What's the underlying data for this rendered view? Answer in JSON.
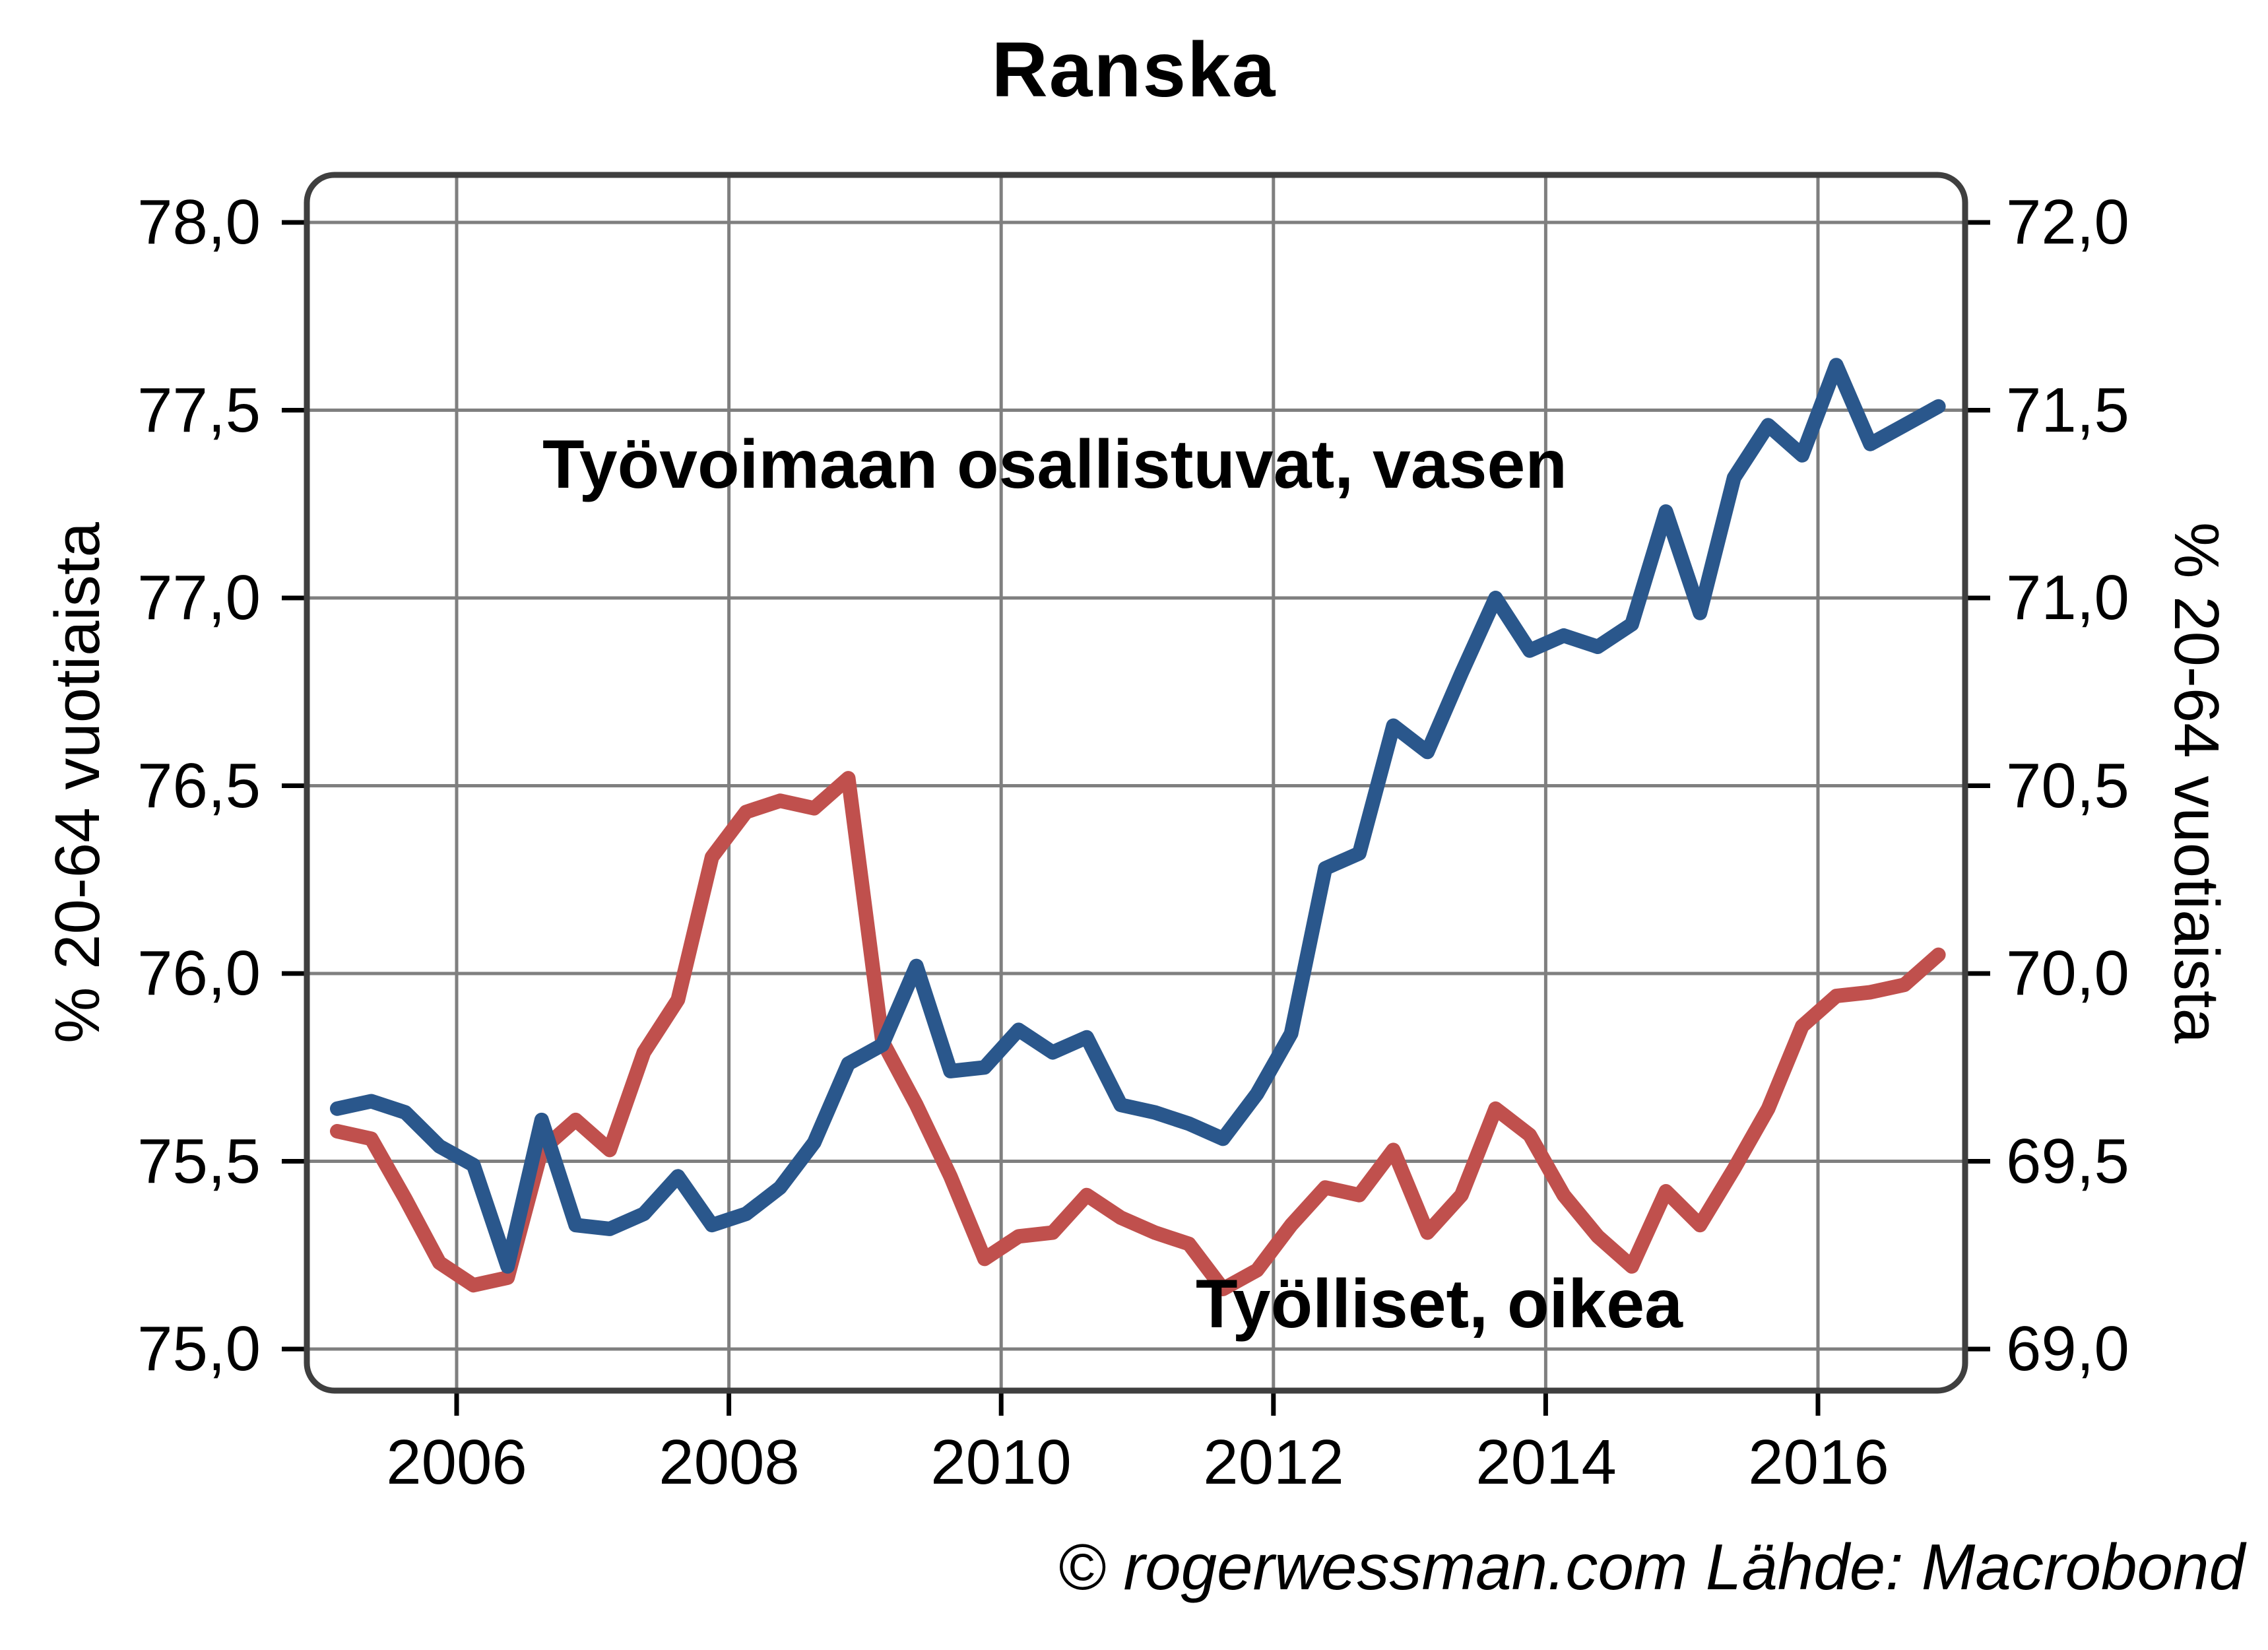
{
  "title": "Ranska",
  "footer": "© rogerwessman.com Lähde: Macrobond",
  "colors": {
    "blue": "#2A578C",
    "red": "#C0504D",
    "grid": "#7F7F7F",
    "frame": "#3F3F3F",
    "tick": "#000000"
  },
  "axis_left": {
    "title": "% 20-64 vuotiaista",
    "ticks": [
      "78,0",
      "77,5",
      "77,0",
      "76,5",
      "76,0",
      "75,5",
      "75,0"
    ]
  },
  "axis_right": {
    "title": "% 20-64 vuotiaista",
    "ticks": [
      "72,0",
      "71,5",
      "71,0",
      "70,5",
      "70,0",
      "69,5",
      "69,0"
    ]
  },
  "axis_x": {
    "ticks": [
      "2006",
      "2008",
      "2010",
      "2012",
      "2014",
      "2016"
    ]
  },
  "series_labels": {
    "blue": "Työvoimaan osallistuvat, vasen",
    "red": "Työlliset, oikea"
  },
  "chart_data": {
    "type": "line",
    "title": "Ranska",
    "x_tick_years": [
      2006,
      2008,
      2010,
      2012,
      2014,
      2016
    ],
    "ylim_left": [
      75.0,
      78.0
    ],
    "ylim_right": [
      69.0,
      72.0
    ],
    "grid": true,
    "frequency": "quarterly",
    "x": [
      "2005Q1",
      "2005Q2",
      "2005Q3",
      "2005Q4",
      "2006Q1",
      "2006Q2",
      "2006Q3",
      "2006Q4",
      "2007Q1",
      "2007Q2",
      "2007Q3",
      "2007Q4",
      "2008Q1",
      "2008Q2",
      "2008Q3",
      "2008Q4",
      "2009Q1",
      "2009Q2",
      "2009Q3",
      "2009Q4",
      "2010Q1",
      "2010Q2",
      "2010Q3",
      "2010Q4",
      "2011Q1",
      "2011Q2",
      "2011Q3",
      "2011Q4",
      "2012Q1",
      "2012Q2",
      "2012Q3",
      "2012Q4",
      "2013Q1",
      "2013Q2",
      "2013Q3",
      "2013Q4",
      "2014Q1",
      "2014Q2",
      "2014Q3",
      "2014Q4",
      "2015Q1",
      "2015Q2",
      "2015Q3",
      "2015Q4",
      "2016Q1",
      "2016Q2",
      "2016Q3",
      "2016Q4"
    ],
    "series": [
      {
        "name": "Työvoimaan osallistuvat, vasen",
        "axis": "left",
        "color": "#2A578C",
        "values": [
          75.64,
          75.66,
          75.63,
          75.54,
          75.49,
          75.22,
          75.61,
          75.33,
          75.32,
          75.36,
          75.46,
          75.33,
          75.36,
          75.43,
          75.55,
          75.76,
          75.81,
          76.02,
          75.74,
          75.75,
          75.85,
          75.79,
          75.83,
          75.65,
          75.63,
          75.6,
          75.56,
          75.68,
          75.84,
          76.28,
          76.32,
          76.66,
          76.59,
          76.8,
          77.0,
          76.86,
          76.9,
          76.87,
          76.93,
          77.23,
          76.96,
          77.32,
          77.46,
          77.38,
          77.62,
          77.41,
          77.46,
          77.51
        ]
      },
      {
        "name": "Työlliset, oikea",
        "axis": "right",
        "color": "#C0504D",
        "values": [
          69.58,
          69.56,
          69.4,
          69.23,
          69.17,
          69.19,
          69.53,
          69.61,
          69.53,
          69.79,
          69.93,
          70.31,
          70.43,
          70.46,
          70.44,
          70.52,
          69.82,
          69.65,
          69.46,
          69.24,
          69.3,
          69.31,
          69.41,
          69.35,
          69.31,
          69.28,
          69.16,
          69.21,
          69.33,
          69.43,
          69.41,
          69.53,
          69.31,
          69.41,
          69.64,
          69.57,
          69.41,
          69.3,
          69.22,
          69.42,
          69.33,
          69.48,
          69.64,
          69.86,
          69.94,
          69.95,
          69.97,
          70.05
        ]
      }
    ]
  }
}
